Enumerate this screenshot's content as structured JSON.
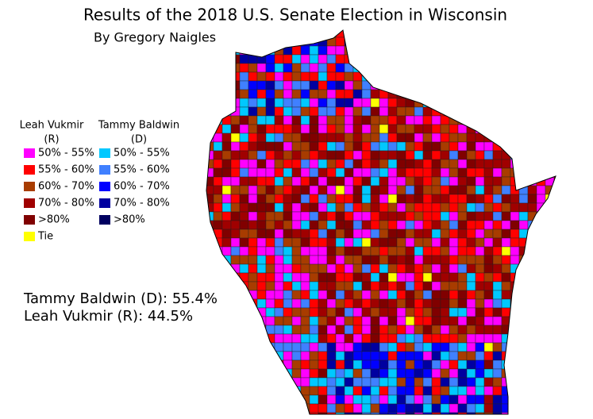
{
  "title": "Results of the 2018 U.S. Senate Election in Wisconsin",
  "subtitle": "By Gregory Naigles",
  "legend": {
    "columns": [
      {
        "header": [
          "Leah Vukmir",
          "(R)"
        ],
        "entries": [
          {
            "label": "50% - 55%",
            "color": "#ff00ff"
          },
          {
            "label": "55% - 60%",
            "color": "#ff0000"
          },
          {
            "label": "60% - 70%",
            "color": "#a83c00"
          },
          {
            "label": "70% - 80%",
            "color": "#a00000"
          },
          {
            "label": ">80%",
            "color": "#800000"
          },
          {
            "label": "Tie",
            "color": "#ffff00"
          }
        ]
      },
      {
        "header": [
          "Tammy Baldwin",
          "(D)"
        ],
        "entries": [
          {
            "label": "50% - 55%",
            "color": "#00c8ff"
          },
          {
            "label": "55% - 60%",
            "color": "#4080ff"
          },
          {
            "label": "60% - 70%",
            "color": "#0000ff"
          },
          {
            "label": "70% - 80%",
            "color": "#0000a0"
          },
          {
            "label": ">80%",
            "color": "#000060"
          }
        ]
      }
    ]
  },
  "results": [
    "Tammy Baldwin (D): 55.4%",
    "Leah Vukmir (R): 44.5%"
  ]
}
